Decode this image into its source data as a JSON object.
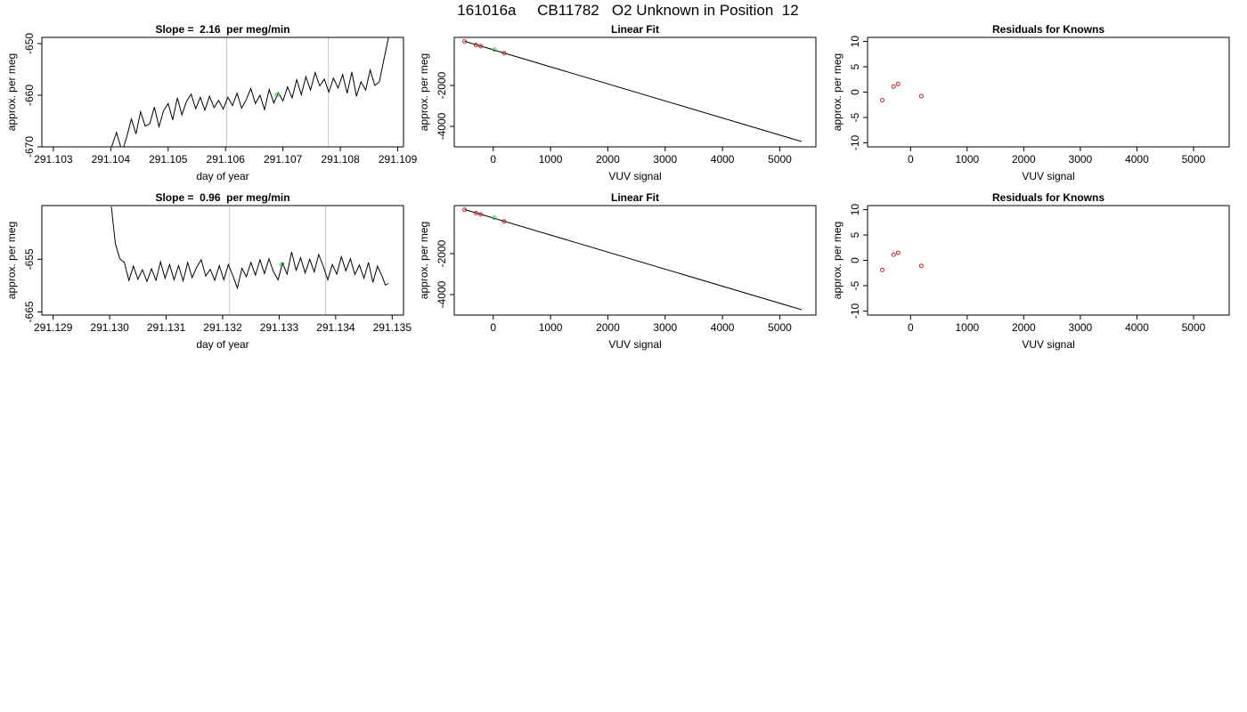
{
  "page_title": "161016a     CB11782   O2 Unknown in Position  12",
  "colors": {
    "line": "#000000",
    "vline": "#c8c8c8",
    "known": "#cc2222",
    "unknown": "#22cc44"
  },
  "chart_data": [
    {
      "id": "ts-top",
      "type": "line",
      "title": "Slope =  2.16  per meg/min",
      "xlabel": "day of year",
      "ylabel": "approx. per meg",
      "xlim": [
        291.1028,
        291.1091
      ],
      "ylim": [
        -670,
        -648.8
      ],
      "xticks": [
        291.103,
        291.104,
        291.105,
        291.106,
        291.107,
        291.108,
        291.109
      ],
      "xtick_labels": [
        "291.103",
        "291.104",
        "291.105",
        "291.106",
        "291.107",
        "291.108",
        "291.109"
      ],
      "yticks": [
        -670,
        -660,
        -650
      ],
      "ytick_labels": [
        "-670",
        "-660",
        "-650"
      ],
      "vlines": [
        291.10602,
        291.10779
      ],
      "series": [
        {
          "points": [
            [
              291.104,
              -670.5
            ],
            [
              291.1041,
              -667.2
            ],
            [
              291.1042,
              -671.0
            ],
            [
              291.10428,
              -668.0
            ],
            [
              291.10436,
              -664.6
            ],
            [
              291.10444,
              -667.5
            ],
            [
              291.10452,
              -663.2
            ],
            [
              291.1046,
              -666.0
            ],
            [
              291.10468,
              -665.5
            ],
            [
              291.10476,
              -662.3
            ],
            [
              291.10484,
              -666.1
            ],
            [
              291.10492,
              -663.0
            ],
            [
              291.105,
              -661.6
            ],
            [
              291.10508,
              -664.8
            ],
            [
              291.10516,
              -660.5
            ],
            [
              291.10524,
              -663.8
            ],
            [
              291.10532,
              -661.2
            ],
            [
              291.1054,
              -659.8
            ],
            [
              291.10548,
              -662.6
            ],
            [
              291.10556,
              -660.4
            ],
            [
              291.10564,
              -662.9
            ],
            [
              291.10572,
              -660.2
            ],
            [
              291.1058,
              -662.4
            ],
            [
              291.10588,
              -661.0
            ],
            [
              291.10596,
              -662.7
            ],
            [
              291.10604,
              -660.4
            ],
            [
              291.10612,
              -662.0
            ],
            [
              291.1062,
              -659.6
            ],
            [
              291.10628,
              -662.5
            ],
            [
              291.10636,
              -660.9
            ],
            [
              291.10644,
              -658.7
            ],
            [
              291.10652,
              -661.6
            ],
            [
              291.1066,
              -660.0
            ],
            [
              291.10668,
              -662.8
            ],
            [
              291.10676,
              -658.9
            ],
            [
              291.10684,
              -661.5
            ],
            [
              291.10692,
              -659.5
            ],
            [
              291.107,
              -661.1
            ],
            [
              291.10708,
              -658.4
            ],
            [
              291.10716,
              -660.5
            ],
            [
              291.10724,
              -657.0
            ],
            [
              291.10732,
              -659.9
            ],
            [
              291.1074,
              -656.4
            ],
            [
              291.10748,
              -659.0
            ],
            [
              291.10756,
              -655.6
            ],
            [
              291.10764,
              -658.2
            ],
            [
              291.10772,
              -656.9
            ],
            [
              291.1078,
              -659.4
            ],
            [
              291.10788,
              -656.7
            ],
            [
              291.10796,
              -658.6
            ],
            [
              291.10804,
              -656.0
            ],
            [
              291.10812,
              -659.6
            ],
            [
              291.1082,
              -655.5
            ],
            [
              291.10828,
              -660.2
            ],
            [
              291.10836,
              -657.4
            ],
            [
              291.10844,
              -659.0
            ],
            [
              291.10852,
              -655.1
            ],
            [
              291.1086,
              -658.1
            ],
            [
              291.10868,
              -657.4
            ],
            [
              291.10876,
              -653.0
            ],
            [
              291.10884,
              -648.8
            ]
          ]
        }
      ],
      "marker": [
        291.1069,
        -659.9
      ]
    },
    {
      "id": "fit-top",
      "type": "scatter",
      "title": "Linear Fit",
      "xlabel": "VUV signal",
      "ylabel": "approx. per meg",
      "xlim": [
        -680,
        5630
      ],
      "ylim": [
        -5000,
        350
      ],
      "xticks": [
        0,
        1000,
        2000,
        3000,
        4000,
        5000
      ],
      "xtick_labels": [
        "0",
        "1000",
        "2000",
        "3000",
        "4000",
        "5000"
      ],
      "yticks": [
        -4000,
        -2000
      ],
      "ytick_labels": [
        "-4000",
        "-2000"
      ],
      "fit_line": [
        [
          -500,
          160
        ],
        [
          5380,
          -4740
        ]
      ],
      "known_points": [
        [
          -500,
          150
        ],
        [
          -300,
          -20
        ],
        [
          -220,
          -80
        ],
        [
          190,
          -420
        ]
      ],
      "unknown_points": [
        [
          20,
          -250
        ]
      ]
    },
    {
      "id": "res-top",
      "type": "scatter",
      "title": "Residuals for Knowns",
      "xlabel": "VUV signal",
      "ylabel": "approx. per meg",
      "xlim": [
        -760,
        5630
      ],
      "ylim": [
        -10.8,
        10.8
      ],
      "xticks": [
        0,
        1000,
        2000,
        3000,
        4000,
        5000
      ],
      "xtick_labels": [
        "0",
        "1000",
        "2000",
        "3000",
        "4000",
        "5000"
      ],
      "yticks": [
        -10,
        -5,
        0,
        5,
        10
      ],
      "ytick_labels": [
        "-10",
        "-5",
        "0",
        "5",
        "10"
      ],
      "known_points": [
        [
          -500,
          -1.6
        ],
        [
          -300,
          1.1
        ],
        [
          -220,
          1.6
        ],
        [
          190,
          -0.8
        ]
      ]
    },
    {
      "id": "ts-bottom",
      "type": "line",
      "title": "Slope =  0.96  per meg/min",
      "xlabel": "day of year",
      "ylabel": "approx. per meg",
      "xlim": [
        291.1288,
        291.1352
      ],
      "ylim": [
        -665.6,
        -644.8
      ],
      "xticks": [
        291.129,
        291.13,
        291.131,
        291.132,
        291.133,
        291.134,
        291.135
      ],
      "xtick_labels": [
        "291.129",
        "291.130",
        "291.131",
        "291.132",
        "291.133",
        "291.134",
        "291.135"
      ],
      "yticks": [
        -665,
        -655
      ],
      "ytick_labels": [
        "-665",
        "-655"
      ],
      "vlines": [
        291.13212,
        291.13382
      ],
      "series": [
        {
          "points": [
            [
              291.13003,
              -645.0
            ],
            [
              291.1301,
              -652.0
            ],
            [
              291.13018,
              -654.9
            ],
            [
              291.13026,
              -655.6
            ],
            [
              291.13034,
              -659.0
            ],
            [
              291.13042,
              -656.3
            ],
            [
              291.1305,
              -658.8
            ],
            [
              291.13058,
              -657.0
            ],
            [
              291.13066,
              -659.2
            ],
            [
              291.13074,
              -656.8
            ],
            [
              291.13082,
              -659.0
            ],
            [
              291.1309,
              -655.5
            ],
            [
              291.13098,
              -658.6
            ],
            [
              291.13106,
              -656.0
            ],
            [
              291.13114,
              -658.9
            ],
            [
              291.13122,
              -656.2
            ],
            [
              291.1313,
              -659.1
            ],
            [
              291.13138,
              -655.6
            ],
            [
              291.13146,
              -658.5
            ],
            [
              291.13154,
              -656.5
            ],
            [
              291.13162,
              -655.1
            ],
            [
              291.1317,
              -658.2
            ],
            [
              291.13178,
              -656.9
            ],
            [
              291.13186,
              -659.0
            ],
            [
              291.13194,
              -656.2
            ],
            [
              291.13202,
              -658.9
            ],
            [
              291.1321,
              -656.0
            ],
            [
              291.13218,
              -658.1
            ],
            [
              291.13226,
              -660.5
            ],
            [
              291.13234,
              -656.7
            ],
            [
              291.13242,
              -658.3
            ],
            [
              291.1325,
              -655.6
            ],
            [
              291.13258,
              -658.0
            ],
            [
              291.13266,
              -655.1
            ],
            [
              291.13274,
              -657.7
            ],
            [
              291.13282,
              -654.9
            ],
            [
              291.1329,
              -657.4
            ],
            [
              291.13298,
              -658.9
            ],
            [
              291.13306,
              -655.7
            ],
            [
              291.13314,
              -657.8
            ],
            [
              291.13322,
              -653.6
            ],
            [
              291.1333,
              -657.1
            ],
            [
              291.13338,
              -654.7
            ],
            [
              291.13346,
              -657.6
            ],
            [
              291.13354,
              -655.0
            ],
            [
              291.13362,
              -657.4
            ],
            [
              291.1337,
              -654.1
            ],
            [
              291.13378,
              -656.3
            ],
            [
              291.13386,
              -658.9
            ],
            [
              291.13394,
              -656.0
            ],
            [
              291.13402,
              -657.8
            ],
            [
              291.1341,
              -654.5
            ],
            [
              291.13418,
              -657.2
            ],
            [
              291.13426,
              -654.9
            ],
            [
              291.13434,
              -657.9
            ],
            [
              291.13442,
              -656.1
            ],
            [
              291.1345,
              -658.6
            ],
            [
              291.13458,
              -655.6
            ],
            [
              291.13466,
              -659.4
            ],
            [
              291.13474,
              -656.3
            ],
            [
              291.13482,
              -658.2
            ],
            [
              291.13488,
              -659.9
            ],
            [
              291.13493,
              -659.6
            ]
          ]
        }
      ],
      "marker": [
        291.13305,
        -656.0
      ]
    },
    {
      "id": "fit-bottom",
      "type": "scatter",
      "title": "Linear Fit",
      "xlabel": "VUV signal",
      "ylabel": "approx. per meg",
      "xlim": [
        -680,
        5630
      ],
      "ylim": [
        -5000,
        350
      ],
      "xticks": [
        0,
        1000,
        2000,
        3000,
        4000,
        5000
      ],
      "xtick_labels": [
        "0",
        "1000",
        "2000",
        "3000",
        "4000",
        "5000"
      ],
      "yticks": [
        -4000,
        -2000
      ],
      "ytick_labels": [
        "-4000",
        "-2000"
      ],
      "fit_line": [
        [
          -500,
          160
        ],
        [
          5380,
          -4740
        ]
      ],
      "known_points": [
        [
          -500,
          150
        ],
        [
          -300,
          -20
        ],
        [
          -220,
          -80
        ],
        [
          190,
          -420
        ]
      ],
      "unknown_points": [
        [
          20,
          -250
        ]
      ]
    },
    {
      "id": "res-bottom",
      "type": "scatter",
      "title": "Residuals for Knowns",
      "xlabel": "VUV signal",
      "ylabel": "approx. per meg",
      "xlim": [
        -760,
        5630
      ],
      "ylim": [
        -10.8,
        10.8
      ],
      "xticks": [
        0,
        1000,
        2000,
        3000,
        4000,
        5000
      ],
      "xtick_labels": [
        "0",
        "1000",
        "2000",
        "3000",
        "4000",
        "5000"
      ],
      "yticks": [
        -10,
        -5,
        0,
        5,
        10
      ],
      "ytick_labels": [
        "-10",
        "-5",
        "0",
        "5",
        "10"
      ],
      "known_points": [
        [
          -500,
          -1.9
        ],
        [
          -300,
          1.1
        ],
        [
          -220,
          1.5
        ],
        [
          190,
          -1.1
        ]
      ]
    }
  ]
}
